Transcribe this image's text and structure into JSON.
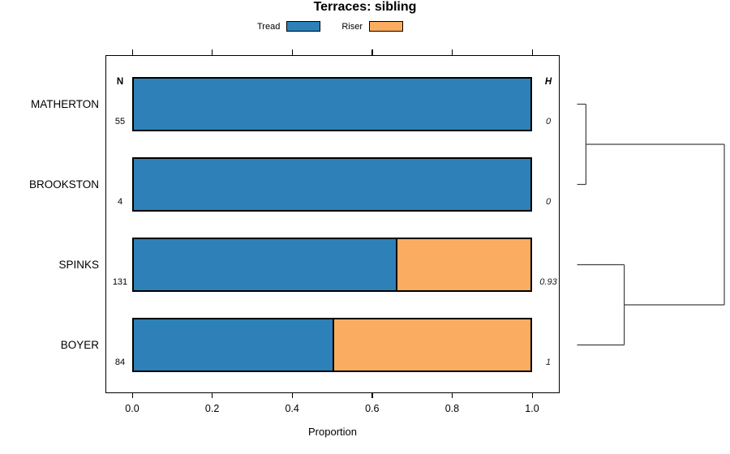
{
  "title": "Terraces: sibling",
  "legend": {
    "items": [
      {
        "label": "Tread",
        "color": "#2E81B8"
      },
      {
        "label": "Riser",
        "color": "#FAAD61"
      }
    ]
  },
  "columns": {
    "n_header": "N",
    "h_header": "H"
  },
  "axis": {
    "label": "Proportion",
    "ticks": [
      "0.0",
      "0.2",
      "0.4",
      "0.6",
      "0.8",
      "1.0"
    ],
    "tick_values": [
      0,
      0.2,
      0.4,
      0.6,
      0.8,
      1.0
    ]
  },
  "colors": {
    "tread": "#2E81B8",
    "riser": "#FAAD61",
    "bar_border": "#000000",
    "dendrogram_line": "#404040"
  },
  "chart_data": {
    "type": "bar",
    "orientation": "horizontal-stacked",
    "title": "Terraces: sibling",
    "xlabel": "Proportion",
    "xlim": [
      0,
      1
    ],
    "grid": false,
    "legend_position": "top",
    "categories": [
      "MATHERTON",
      "BROOKSTON",
      "SPINKS",
      "BOYER"
    ],
    "series": [
      {
        "name": "Tread",
        "color": "#2E81B8",
        "values": [
          1.0,
          1.0,
          0.66,
          0.5
        ]
      },
      {
        "name": "Riser",
        "color": "#FAAD61",
        "values": [
          0.0,
          0.0,
          0.34,
          0.5
        ]
      }
    ],
    "n_values": [
      "55",
      "4",
      "131",
      "84"
    ],
    "h_values": [
      "0",
      "0",
      "0.93",
      "1"
    ],
    "dendrogram": {
      "orientation": "right-of-panel",
      "merges": [
        {
          "a": [
            "leaf",
            0
          ],
          "b": [
            "leaf",
            1
          ],
          "height": 0.06
        },
        {
          "a": [
            "leaf",
            2
          ],
          "b": [
            "leaf",
            3
          ],
          "height": 0.32
        },
        {
          "a": [
            "merge",
            0
          ],
          "b": [
            "merge",
            1
          ],
          "height": 1.0
        }
      ]
    }
  }
}
